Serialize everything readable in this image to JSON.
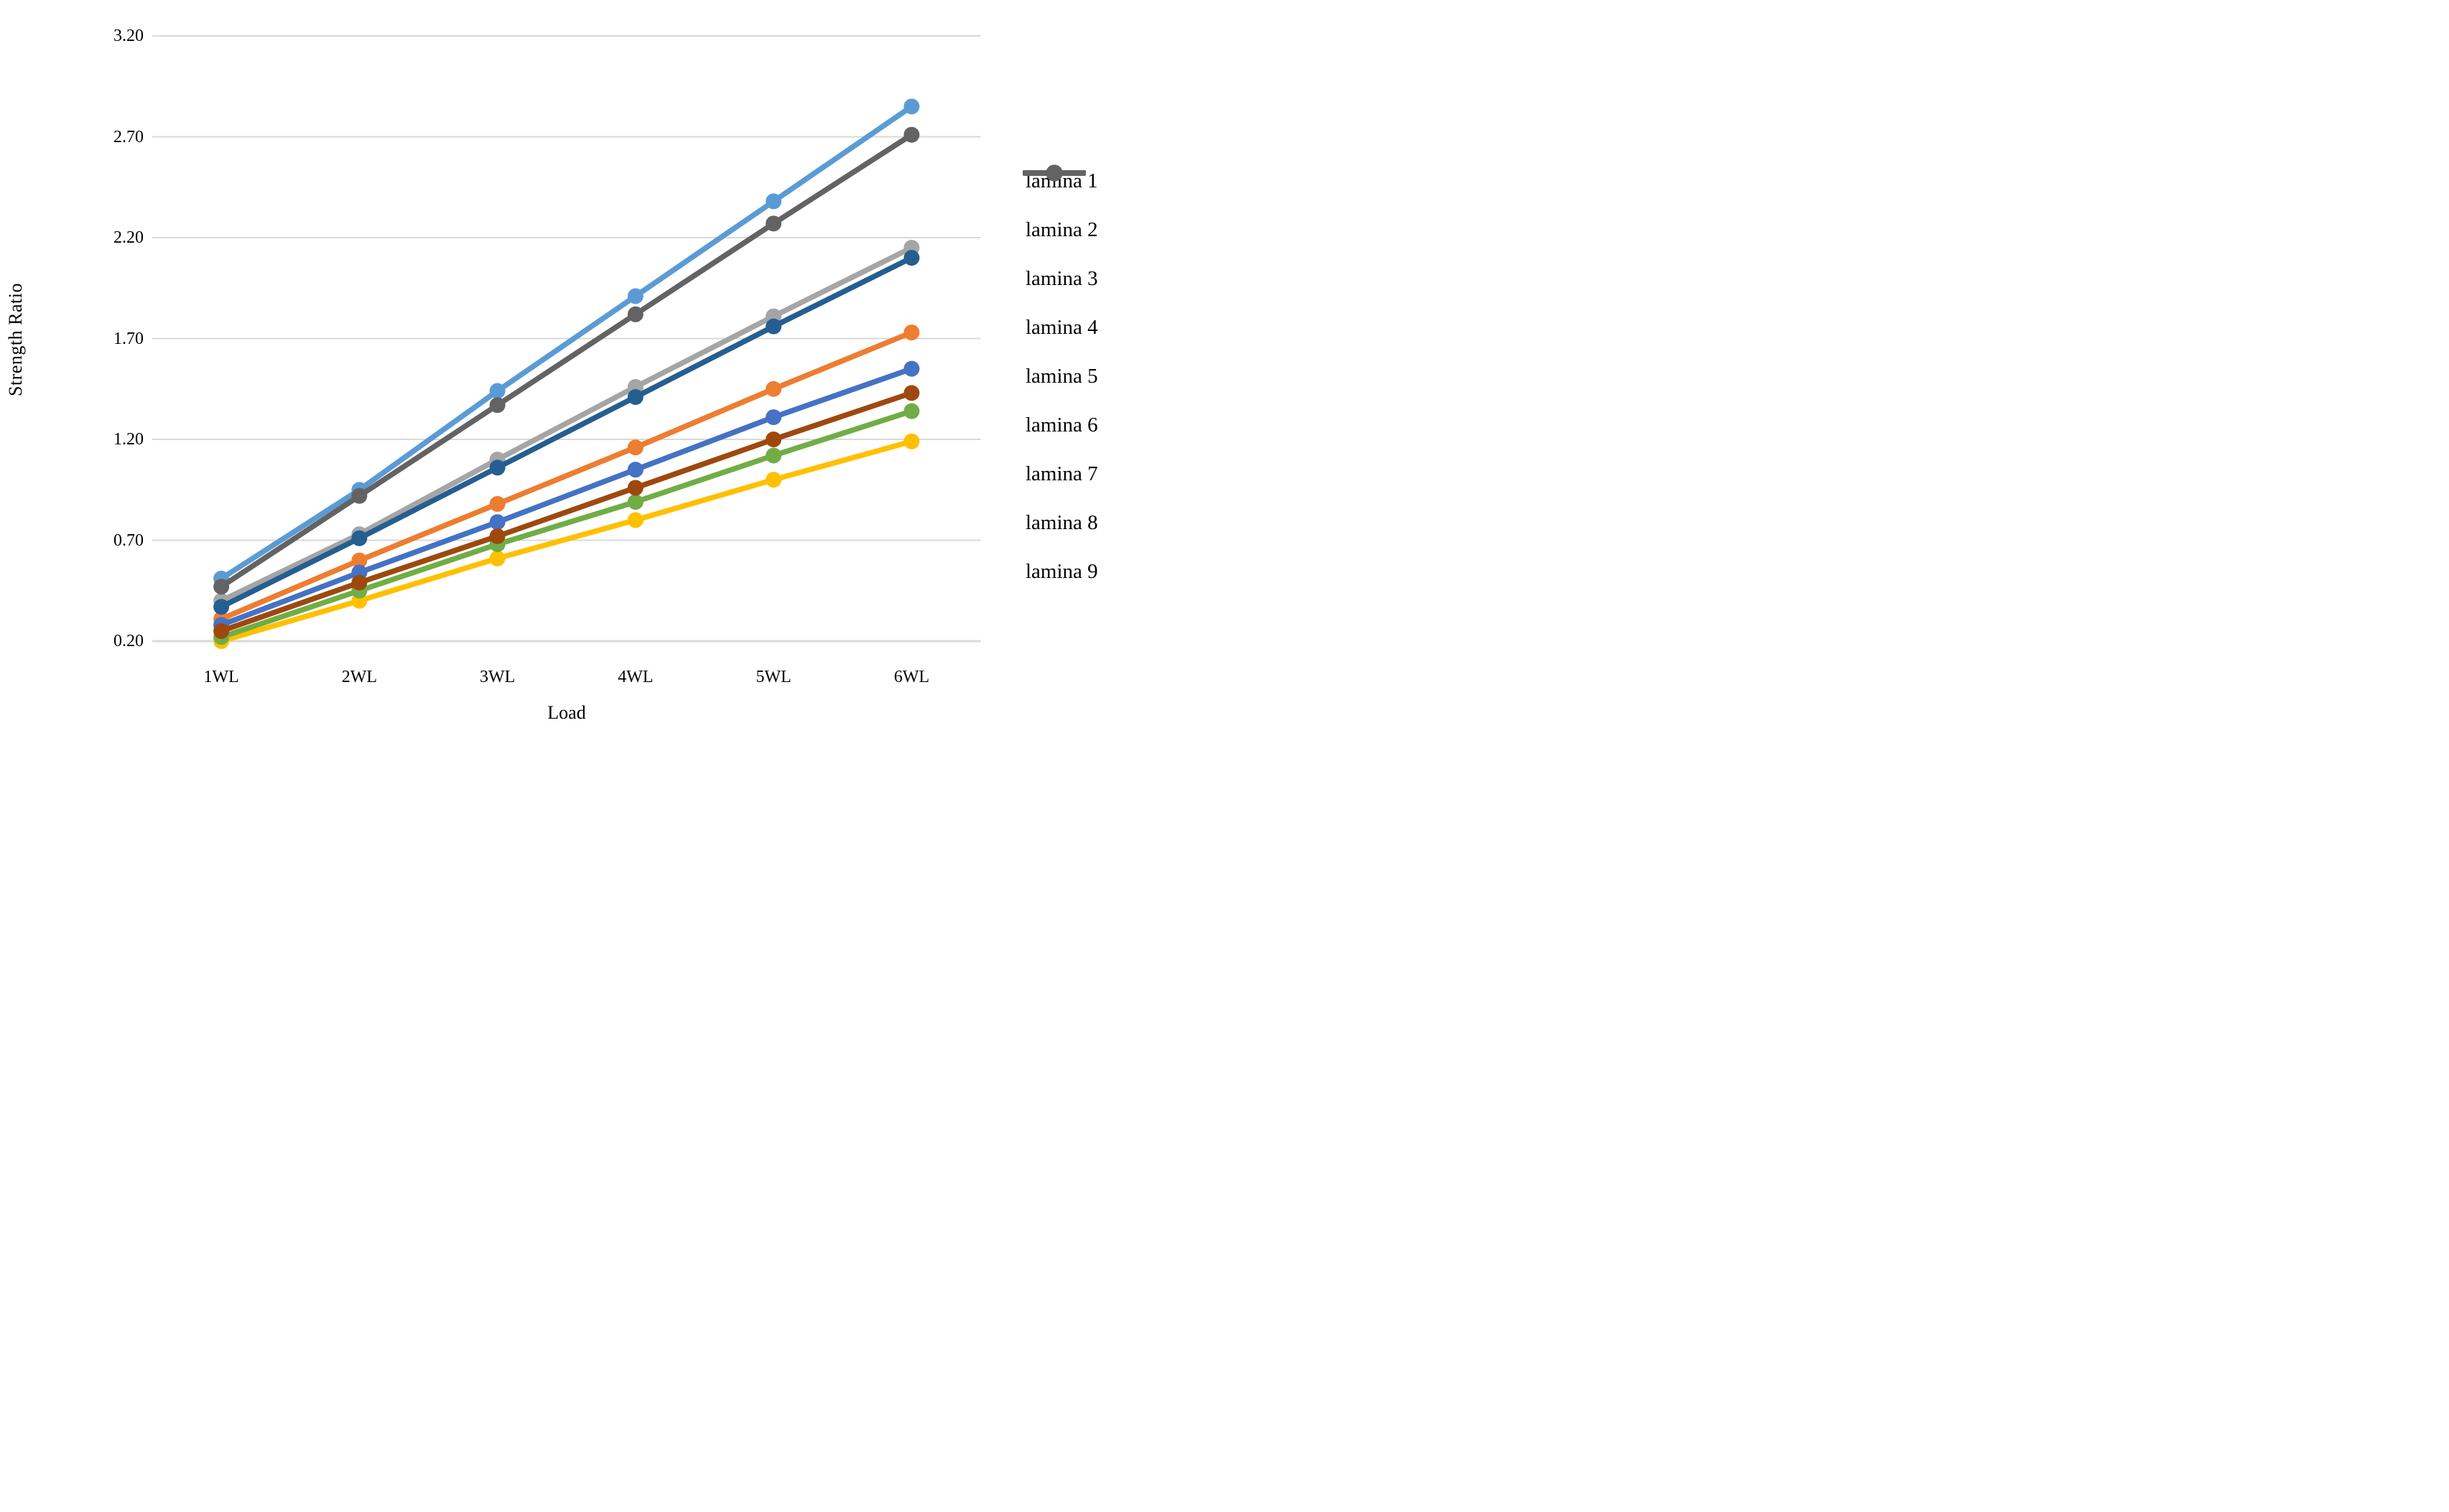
{
  "chart_data": {
    "type": "line",
    "title": "",
    "xlabel": "Load",
    "ylabel": "Strength Ratio",
    "categories": [
      "1WL",
      "2WL",
      "3WL",
      "4WL",
      "5WL",
      "6WL"
    ],
    "y_ticks": [
      "3.20",
      "2.70",
      "2.20",
      "1.70",
      "1.20",
      "0.70",
      "0.20"
    ],
    "ylim": [
      0.2,
      3.2
    ],
    "y_step": 0.5,
    "grid": true,
    "legend_position": "right",
    "gridline_color": "#D9D9D9",
    "background_color": "#FFFFFF",
    "series": [
      {
        "name": "lamina 1",
        "color": "#5B9BD5",
        "values": [
          0.51,
          0.95,
          1.44,
          1.91,
          2.38,
          2.85
        ]
      },
      {
        "name": "lamina 2",
        "color": "#ED7D31",
        "values": [
          0.31,
          0.6,
          0.88,
          1.16,
          1.45,
          1.73
        ]
      },
      {
        "name": "lamina 3",
        "color": "#A5A5A5",
        "values": [
          0.4,
          0.73,
          1.1,
          1.46,
          1.81,
          2.15
        ]
      },
      {
        "name": "lamina 4",
        "color": "#FFC000",
        "values": [
          0.2,
          0.4,
          0.61,
          0.8,
          1.0,
          1.19
        ]
      },
      {
        "name": "lamina 5",
        "color": "#4472C4",
        "values": [
          0.28,
          0.54,
          0.79,
          1.05,
          1.31,
          1.55
        ]
      },
      {
        "name": "lamina 6",
        "color": "#70AD47",
        "values": [
          0.22,
          0.45,
          0.68,
          0.89,
          1.12,
          1.34
        ]
      },
      {
        "name": "lamina 7",
        "color": "#255E91",
        "values": [
          0.37,
          0.71,
          1.06,
          1.41,
          1.76,
          2.1
        ]
      },
      {
        "name": "lamina 8",
        "color": "#9E480E",
        "values": [
          0.25,
          0.49,
          0.72,
          0.96,
          1.2,
          1.43
        ]
      },
      {
        "name": "lamina 9",
        "color": "#636363",
        "values": [
          0.47,
          0.92,
          1.37,
          1.82,
          2.27,
          2.71
        ]
      }
    ]
  }
}
